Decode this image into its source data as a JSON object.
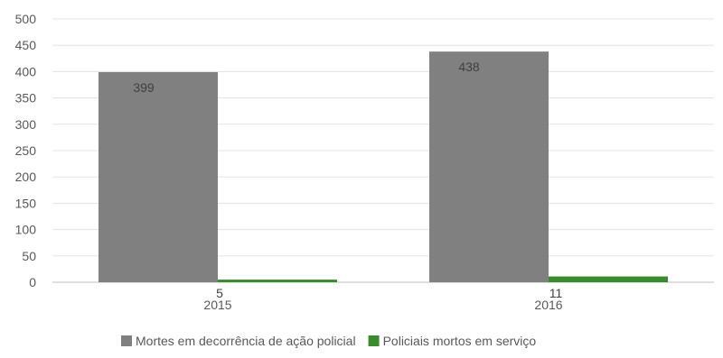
{
  "chart_data": {
    "type": "bar",
    "title": "",
    "xlabel": "",
    "ylabel": "",
    "categories": [
      "2015",
      "2016"
    ],
    "ylim": [
      0,
      500
    ],
    "yticks": [
      0,
      50,
      100,
      150,
      200,
      250,
      300,
      350,
      400,
      450,
      500
    ],
    "grid": true,
    "legend_position": "bottom",
    "series": [
      {
        "name": "Mortes em decorrência de ação policial",
        "values": [
          399,
          438
        ],
        "color": "#808080"
      },
      {
        "name": "Policiais mortos em serviço",
        "values": [
          5,
          11
        ],
        "color": "#3a8a2e"
      }
    ]
  }
}
